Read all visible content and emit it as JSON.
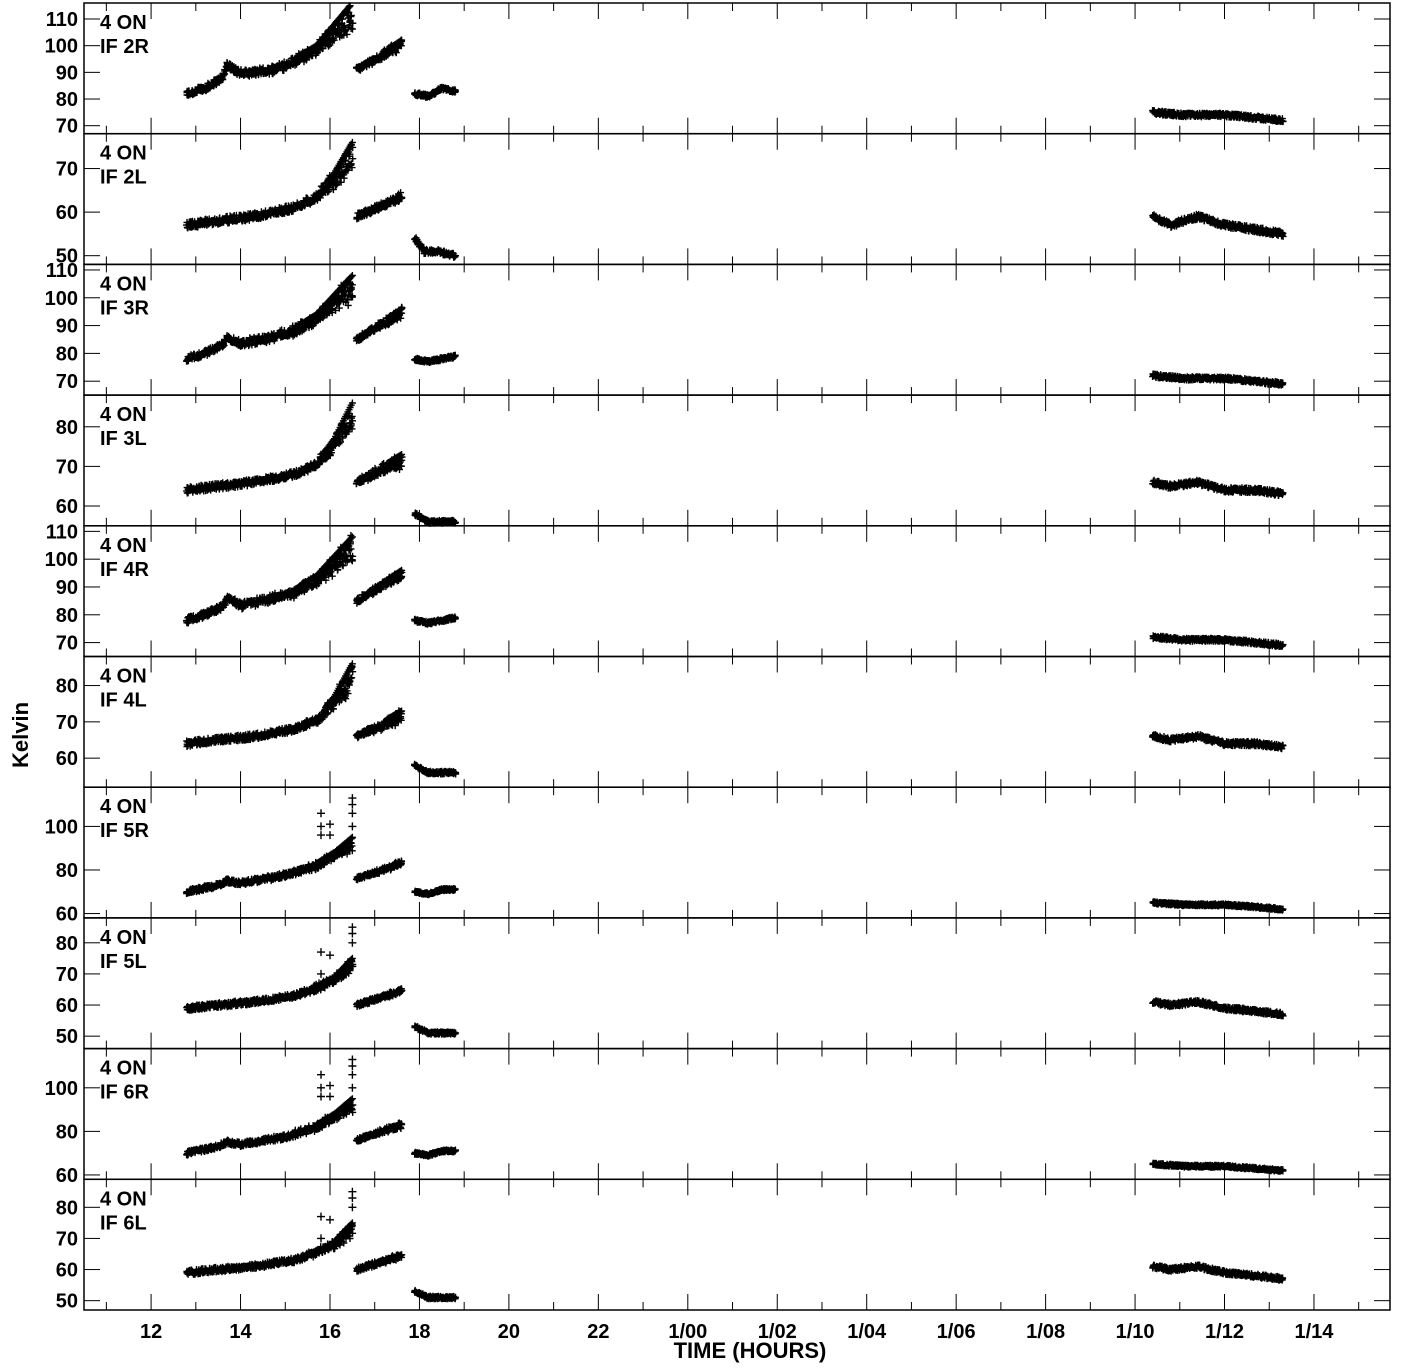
{
  "chart_data": {
    "type": "scatter",
    "xlabel": "TIME (HOURS)",
    "ylabel": "Kelvin",
    "x_tick_labels": [
      "12",
      "14",
      "16",
      "18",
      "20",
      "22",
      "1/00",
      "1/02",
      "1/04",
      "1/06",
      "1/08",
      "1/10",
      "1/12",
      "1/14"
    ],
    "x_tick_hours": [
      12,
      14,
      16,
      18,
      20,
      22,
      24,
      26,
      28,
      30,
      32,
      34,
      36,
      38
    ],
    "xlim": [
      10.5,
      39.7
    ],
    "marker": "+",
    "panels": [
      {
        "id": "2R",
        "label1": "4 ON",
        "label2": "IF 2R",
        "ylim": [
          67,
          116
        ],
        "yticks": [
          70,
          80,
          90,
          100,
          110
        ],
        "segments": [
          {
            "x": [
              12.8,
              13.2,
              13.6,
              13.7,
              14.0,
              14.6,
              15.2,
              15.7,
              16.1,
              16.5
            ],
            "y": [
              82,
              84,
              88,
              93,
              89,
              90,
              93,
              97,
              102,
              105
            ],
            "upper": [
              82,
              84,
              88,
              93,
              90,
              91,
              95,
              100,
              108,
              116
            ],
            "spread": 1.2
          },
          {
            "x": [
              16.6,
              17.6
            ],
            "y": [
              91,
              99
            ],
            "upper": [
              91,
              102
            ],
            "spread": 0.9
          },
          {
            "x": [
              17.9,
              18.2,
              18.5,
              18.8
            ],
            "y": [
              82,
              81,
              84,
              83
            ],
            "spread": 0.6
          },
          {
            "x": [
              34.4,
              35.1,
              36.0,
              36.7,
              37.3
            ],
            "y": [
              75,
              74,
              74,
              73,
              72
            ],
            "spread": 0.7
          }
        ]
      },
      {
        "id": "2L",
        "label1": "4 ON",
        "label2": "IF 2L",
        "ylim": [
          48,
          78
        ],
        "yticks": [
          50,
          60,
          70
        ],
        "segments": [
          {
            "x": [
              12.8,
              13.5,
              14.3,
              15.2,
              15.7,
              16.1,
              16.5
            ],
            "y": [
              57,
              58,
              59,
              61,
              63,
              66,
              70
            ],
            "upper": [
              57,
              58,
              59,
              61,
              64,
              69,
              76
            ],
            "spread": 0.8
          },
          {
            "x": [
              16.6,
              17.6
            ],
            "y": [
              59,
              63
            ],
            "upper": [
              59,
              64
            ],
            "spread": 0.7
          },
          {
            "x": [
              17.9,
              18.1,
              18.4,
              18.8
            ],
            "y": [
              54,
              51,
              51,
              50
            ],
            "spread": 0.5
          },
          {
            "x": [
              34.4,
              34.8,
              35.4,
              36.0,
              36.7,
              37.3
            ],
            "y": [
              59,
              57,
              59,
              57,
              56,
              55
            ],
            "spread": 0.6
          }
        ]
      },
      {
        "id": "3R",
        "label1": "4 ON",
        "label2": "IF 3R",
        "ylim": [
          65,
          112
        ],
        "yticks": [
          70,
          80,
          90,
          100,
          110
        ],
        "segments": [
          {
            "x": [
              12.8,
              13.2,
              13.6,
              13.7,
              14.0,
              14.6,
              15.2,
              15.7,
              16.1,
              16.5
            ],
            "y": [
              78,
              80,
              83,
              86,
              83,
              85,
              87,
              91,
              95,
              99
            ],
            "upper": [
              78,
              80,
              83,
              86,
              84,
              86,
              89,
              94,
              101,
              108
            ],
            "spread": 1.1
          },
          {
            "x": [
              16.6,
              17.6
            ],
            "y": [
              85,
              93
            ],
            "upper": [
              85,
              96
            ],
            "spread": 0.9
          },
          {
            "x": [
              17.9,
              18.2,
              18.5,
              18.8
            ],
            "y": [
              78,
              77,
              78,
              79
            ],
            "spread": 0.5
          },
          {
            "x": [
              34.4,
              35.1,
              36.0,
              36.7,
              37.3
            ],
            "y": [
              72,
              71,
              71,
              70,
              69
            ],
            "spread": 0.6
          }
        ]
      },
      {
        "id": "3L",
        "label1": "4 ON",
        "label2": "IF 3L",
        "ylim": [
          55,
          88
        ],
        "yticks": [
          60,
          70,
          80
        ],
        "segments": [
          {
            "x": [
              12.8,
              13.5,
              14.3,
              15.2,
              15.7,
              16.1,
              16.5
            ],
            "y": [
              64,
              65,
              66,
              68,
              70,
              74,
              79
            ],
            "upper": [
              64,
              65,
              66,
              68,
              71,
              77,
              86
            ],
            "spread": 0.8
          },
          {
            "x": [
              16.6,
              17.6
            ],
            "y": [
              66,
              70
            ],
            "upper": [
              66,
              73
            ],
            "spread": 0.7
          },
          {
            "x": [
              17.9,
              18.2,
              18.5,
              18.8
            ],
            "y": [
              58,
              56,
              56,
              56
            ],
            "spread": 0.4
          },
          {
            "x": [
              34.4,
              34.8,
              35.4,
              36.0,
              36.7,
              37.3
            ],
            "y": [
              66,
              65,
              66,
              64,
              64,
              63
            ],
            "spread": 0.6
          }
        ]
      },
      {
        "id": "4R",
        "label1": "4 ON",
        "label2": "IF 4R",
        "ylim": [
          65,
          112
        ],
        "yticks": [
          70,
          80,
          90,
          100,
          110
        ],
        "segments": [
          {
            "x": [
              12.8,
              13.2,
              13.6,
              13.7,
              14.0,
              14.6,
              15.2,
              15.7,
              16.1,
              16.5
            ],
            "y": [
              78,
              80,
              83,
              86,
              83,
              85,
              87,
              91,
              95,
              99
            ],
            "upper": [
              78,
              80,
              83,
              86,
              84,
              86,
              89,
              94,
              101,
              108
            ],
            "spread": 1.1
          },
          {
            "x": [
              16.6,
              17.6
            ],
            "y": [
              85,
              93
            ],
            "upper": [
              85,
              96
            ],
            "spread": 0.9
          },
          {
            "x": [
              17.9,
              18.2,
              18.5,
              18.8
            ],
            "y": [
              78,
              77,
              78,
              79
            ],
            "spread": 0.5
          },
          {
            "x": [
              34.4,
              35.1,
              36.0,
              36.7,
              37.3
            ],
            "y": [
              72,
              71,
              71,
              70,
              69
            ],
            "spread": 0.6
          }
        ]
      },
      {
        "id": "4L",
        "label1": "4 ON",
        "label2": "IF 4L",
        "ylim": [
          52,
          88
        ],
        "yticks": [
          60,
          70,
          80
        ],
        "segments": [
          {
            "x": [
              12.8,
              13.5,
              14.3,
              15.2,
              15.7,
              16.1,
              16.5
            ],
            "y": [
              64,
              65,
              66,
              68,
              70,
              74,
              79
            ],
            "upper": [
              64,
              65,
              66,
              68,
              71,
              77,
              86
            ],
            "spread": 0.8
          },
          {
            "x": [
              16.6,
              17.6
            ],
            "y": [
              66,
              70
            ],
            "upper": [
              66,
              73
            ],
            "spread": 0.7
          },
          {
            "x": [
              17.9,
              18.2,
              18.5,
              18.8
            ],
            "y": [
              58,
              56,
              56,
              56
            ],
            "spread": 0.4
          },
          {
            "x": [
              34.4,
              34.8,
              35.4,
              36.0,
              36.7,
              37.3
            ],
            "y": [
              66,
              65,
              66,
              64,
              64,
              63
            ],
            "spread": 0.6
          }
        ]
      },
      {
        "id": "5R",
        "label1": "4 ON",
        "label2": "IF 5R",
        "ylim": [
          58,
          118
        ],
        "yticks": [
          60,
          80,
          100
        ],
        "segments": [
          {
            "x": [
              12.8,
              13.5,
              13.7,
              14.0,
              15.0,
              15.7,
              16.1,
              16.5
            ],
            "y": [
              70,
              73,
              75,
              74,
              77,
              81,
              85,
              89
            ],
            "upper": [
              70,
              73,
              75,
              74,
              78,
              83,
              88,
              95
            ],
            "spread": 1.0
          },
          {
            "x": [
              16.6,
              17.6
            ],
            "y": [
              76,
              82
            ],
            "upper": [
              76,
              84
            ],
            "spread": 0.8
          },
          {
            "x": [
              17.9,
              18.2,
              18.5,
              18.8
            ],
            "y": [
              70,
              69,
              71,
              71
            ],
            "spread": 0.5
          },
          {
            "x": [
              34.4,
              35.1,
              36.0,
              36.7,
              37.3
            ],
            "y": [
              65,
              64,
              64,
              63,
              62
            ],
            "spread": 0.5
          }
        ],
        "outliers": {
          "x": [
            15.8,
            15.8,
            15.8,
            16.0,
            16.0,
            16.5,
            16.5,
            16.5,
            16.5
          ],
          "y": [
            106,
            100,
            96,
            101,
            96,
            113,
            110,
            106,
            100
          ]
        }
      },
      {
        "id": "5L",
        "label1": "4 ON",
        "label2": "IF 5L",
        "ylim": [
          46,
          88
        ],
        "yticks": [
          50,
          60,
          70,
          80
        ],
        "segments": [
          {
            "x": [
              12.8,
              13.5,
              14.3,
              15.2,
              15.7,
              16.1,
              16.5
            ],
            "y": [
              59,
              60,
              61,
              63,
              65,
              67,
              71
            ],
            "upper": [
              59,
              60,
              61,
              63,
              66,
              69,
              75
            ],
            "spread": 0.8
          },
          {
            "x": [
              16.6,
              17.6
            ],
            "y": [
              60,
              64
            ],
            "upper": [
              60,
              65
            ],
            "spread": 0.6
          },
          {
            "x": [
              17.9,
              18.2,
              18.5,
              18.8
            ],
            "y": [
              53,
              51,
              51,
              51
            ],
            "spread": 0.4
          },
          {
            "x": [
              34.4,
              34.8,
              35.4,
              36.0,
              36.7,
              37.3
            ],
            "y": [
              61,
              60,
              61,
              59,
              58,
              57
            ],
            "spread": 0.6
          }
        ],
        "outliers": {
          "x": [
            15.8,
            15.8,
            16.0,
            16.5,
            16.5,
            16.5
          ],
          "y": [
            77,
            70,
            76,
            85,
            83,
            80
          ]
        }
      },
      {
        "id": "6R",
        "label1": "4 ON",
        "label2": "IF 6R",
        "ylim": [
          58,
          118
        ],
        "yticks": [
          60,
          80,
          100
        ],
        "segments": [
          {
            "x": [
              12.8,
              13.5,
              13.7,
              14.0,
              15.0,
              15.7,
              16.1,
              16.5
            ],
            "y": [
              70,
              73,
              75,
              74,
              77,
              81,
              85,
              89
            ],
            "upper": [
              70,
              73,
              75,
              74,
              78,
              83,
              88,
              95
            ],
            "spread": 1.0
          },
          {
            "x": [
              16.6,
              17.6
            ],
            "y": [
              76,
              82
            ],
            "upper": [
              76,
              84
            ],
            "spread": 0.8
          },
          {
            "x": [
              17.9,
              18.2,
              18.5,
              18.8
            ],
            "y": [
              70,
              69,
              71,
              71
            ],
            "spread": 0.5
          },
          {
            "x": [
              34.4,
              35.1,
              36.0,
              36.7,
              37.3
            ],
            "y": [
              65,
              64,
              64,
              63,
              62
            ],
            "spread": 0.5
          }
        ],
        "outliers": {
          "x": [
            15.8,
            15.8,
            15.8,
            16.0,
            16.0,
            16.5,
            16.5,
            16.5,
            16.5
          ],
          "y": [
            106,
            100,
            96,
            101,
            96,
            113,
            110,
            106,
            100
          ]
        }
      },
      {
        "id": "6L",
        "label1": "4 ON",
        "label2": "IF 6L",
        "ylim": [
          47,
          89
        ],
        "yticks": [
          50,
          60,
          70,
          80
        ],
        "segments": [
          {
            "x": [
              12.8,
              13.5,
              14.3,
              15.2,
              15.7,
              16.1,
              16.5
            ],
            "y": [
              59,
              60,
              61,
              63,
              65,
              67,
              71
            ],
            "upper": [
              59,
              60,
              61,
              63,
              66,
              69,
              75
            ],
            "spread": 0.8
          },
          {
            "x": [
              16.6,
              17.6
            ],
            "y": [
              60,
              64
            ],
            "upper": [
              60,
              65
            ],
            "spread": 0.6
          },
          {
            "x": [
              17.9,
              18.2,
              18.5,
              18.8
            ],
            "y": [
              53,
              51,
              51,
              51
            ],
            "spread": 0.4
          },
          {
            "x": [
              34.4,
              34.8,
              35.4,
              36.0,
              36.7,
              37.3
            ],
            "y": [
              61,
              60,
              61,
              59,
              58,
              57
            ],
            "spread": 0.6
          }
        ],
        "outliers": {
          "x": [
            15.8,
            15.8,
            16.0,
            16.5,
            16.5,
            16.5
          ],
          "y": [
            77,
            70,
            76,
            85,
            83,
            80
          ]
        }
      }
    ]
  }
}
